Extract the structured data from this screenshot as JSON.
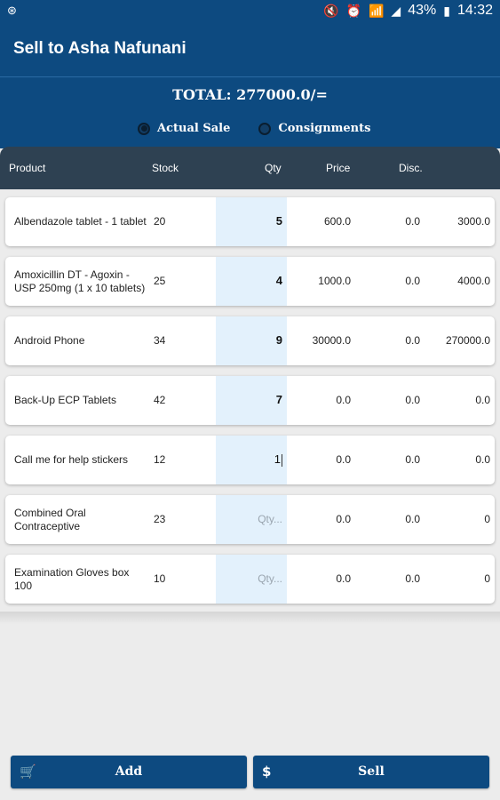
{
  "statusbar": {
    "left_icon": "android-icon",
    "left_glyph": "⊛",
    "battery": "43%",
    "time": "14:32",
    "icons": [
      "mute-icon",
      "alarm-icon",
      "wifi-icon",
      "signal-icon",
      "battery-icon"
    ]
  },
  "appbar": {
    "title": "Sell to Asha Nafunani"
  },
  "header": {
    "total": "TOTAL: 277000.0/=",
    "radio_actual": "Actual Sale",
    "radio_consignments": "Consignments",
    "selected": "actual"
  },
  "columns": {
    "product": "Product",
    "stock": "Stock",
    "qty": "Qty",
    "price": "Price",
    "disc": "Disc."
  },
  "rows": [
    {
      "product": "Albendazole tablet - 1 tablet",
      "stock": "20",
      "qty": "5",
      "qty_placeholder": "",
      "price": "600.0",
      "disc": "0.0",
      "amount": "3000.0"
    },
    {
      "product": "Amoxicillin DT - Agoxin - USP 250mg (1 x 10 tablets)",
      "stock": "25",
      "qty": "4",
      "qty_placeholder": "",
      "price": "1000.0",
      "disc": "0.0",
      "amount": "4000.0"
    },
    {
      "product": "Android Phone",
      "stock": "34",
      "qty": "9",
      "qty_placeholder": "",
      "price": "30000.0",
      "disc": "0.0",
      "amount": "270000.0"
    },
    {
      "product": "Back-Up ECP Tablets",
      "stock": "42",
      "qty": "7",
      "qty_placeholder": "",
      "price": "0.0",
      "disc": "0.0",
      "amount": "0.0"
    },
    {
      "product": "Call me for help stickers",
      "stock": "12",
      "qty": "1",
      "qty_placeholder": "",
      "price": "0.0",
      "disc": "0.0",
      "amount": "0.0"
    },
    {
      "product": "Combined Oral Contraceptive",
      "stock": "23",
      "qty": "",
      "qty_placeholder": "Qty...",
      "price": "0.0",
      "disc": "0.0",
      "amount": "0"
    },
    {
      "product": "Examination Gloves box 100",
      "stock": "10",
      "qty": "",
      "qty_placeholder": "Qty...",
      "price": "0.0",
      "disc": "0.0",
      "amount": "0"
    }
  ],
  "buttons": {
    "add": "Add",
    "sell": "Sell",
    "add_icon": "cart-icon",
    "sell_icon": "dollar-icon"
  }
}
